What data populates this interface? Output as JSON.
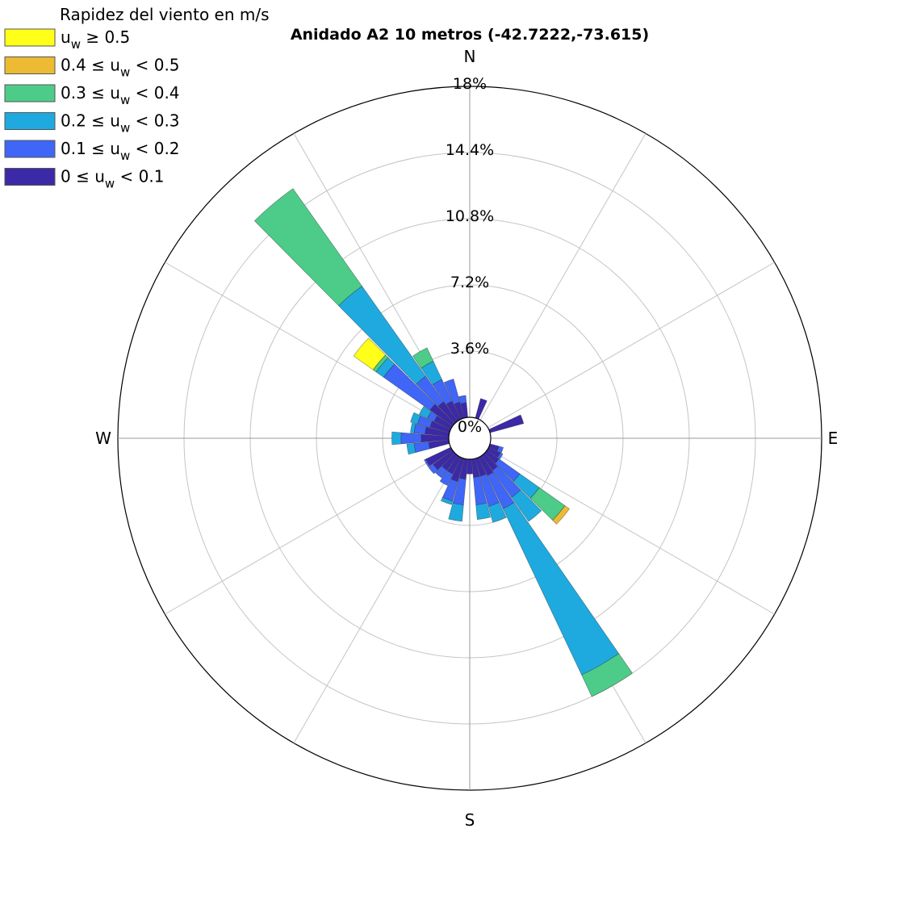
{
  "chart_data": {
    "type": "wind-rose",
    "title": "Anidado A2 10 metros  (-42.7222,-73.615)",
    "legend": {
      "title": "Rapidez del viento en m/s",
      "placement": "top-left",
      "entries": [
        {
          "label": "u_w ≥ 0.5",
          "base": "u",
          "sub": "w",
          "post": " ≥ 0.5",
          "color": "#ffff19"
        },
        {
          "label": "0.4 ≤ u_w < 0.5",
          "pre": "0.4 ≤ ",
          "base": "u",
          "sub": "w",
          "post": " < 0.5",
          "color": "#ecba33"
        },
        {
          "label": "0.3 ≤ u_w < 0.4",
          "pre": "0.3 ≤ ",
          "base": "u",
          "sub": "w",
          "post": " < 0.4",
          "color": "#4ccc88"
        },
        {
          "label": "0.2 ≤ u_w < 0.3",
          "pre": "0.2 ≤ ",
          "base": "u",
          "sub": "w",
          "post": " < 0.3",
          "color": "#1eaadf"
        },
        {
          "label": "0.1 ≤ u_w < 0.2",
          "pre": "0.1 ≤ ",
          "base": "u",
          "sub": "w",
          "post": " < 0.2",
          "color": "#3f66f7"
        },
        {
          "label": "0 ≤ u_w < 0.1",
          "pre": "0 ≤ ",
          "base": "u",
          "sub": "w",
          "post": " < 0.1",
          "color": "#3b29a8"
        }
      ]
    },
    "directions": {
      "N": "N",
      "E": "E",
      "S": "S",
      "W": "W"
    },
    "radial_ticks": [
      "0%",
      "3.6%",
      "7.2%",
      "10.8%",
      "14.4%",
      "18%"
    ],
    "radial_max_percent": 18,
    "grid": true,
    "sector_width_deg": 10,
    "series_order": [
      "0-0.1",
      "0.1-0.2",
      "0.2-0.3",
      "0.3-0.4",
      "0.4-0.5",
      ">=0.5"
    ],
    "sectors": [
      {
        "direction_deg": 20,
        "cumulative_percent": [
          1.1
        ]
      },
      {
        "direction_deg": 70,
        "cumulative_percent": [
          1.9
        ]
      },
      {
        "direction_deg": 110,
        "cumulative_percent": [
          0.5,
          0.75
        ]
      },
      {
        "direction_deg": 120,
        "cumulative_percent": [
          0.7,
          0.85
        ]
      },
      {
        "direction_deg": 130,
        "cumulative_percent": [
          0.8,
          2.2,
          3.5,
          5.2,
          5.5
        ]
      },
      {
        "direction_deg": 140,
        "cumulative_percent": [
          1.0,
          2.8,
          4.4
        ]
      },
      {
        "direction_deg": 150,
        "cumulative_percent": [
          1.1,
          3.1,
          13.1,
          14.4
        ]
      },
      {
        "direction_deg": 160,
        "cumulative_percent": [
          1.0,
          2.7,
          3.6
        ]
      },
      {
        "direction_deg": 170,
        "cumulative_percent": [
          1.0,
          2.5,
          3.3
        ]
      },
      {
        "direction_deg": 180,
        "cumulative_percent": [
          0.8
        ]
      },
      {
        "direction_deg": 190,
        "cumulative_percent": [
          1.1,
          2.5,
          3.4
        ]
      },
      {
        "direction_deg": 200,
        "cumulative_percent": [
          1.3,
          2.4,
          2.6
        ]
      },
      {
        "direction_deg": 210,
        "cumulative_percent": [
          1.0,
          1.7
        ]
      },
      {
        "direction_deg": 220,
        "cumulative_percent": [
          1.0,
          1.5
        ]
      },
      {
        "direction_deg": 230,
        "cumulative_percent": [
          1.3,
          1.6
        ]
      },
      {
        "direction_deg": 240,
        "cumulative_percent": [
          1.5,
          1.6
        ]
      },
      {
        "direction_deg": 260,
        "cumulative_percent": [
          1.1,
          1.9,
          2.3
        ]
      },
      {
        "direction_deg": 270,
        "cumulative_percent": [
          1.5,
          2.6,
          3.1
        ]
      },
      {
        "direction_deg": 280,
        "cumulative_percent": [
          1.3,
          1.9,
          2.1
        ]
      },
      {
        "direction_deg": 290,
        "cumulative_percent": [
          1.1,
          1.8,
          2.2
        ]
      },
      {
        "direction_deg": 300,
        "cumulative_percent": [
          1.0,
          1.4,
          1.9
        ]
      },
      {
        "direction_deg": 310,
        "cumulative_percent": [
          1.5,
          4.6,
          5.1,
          5.3,
          5.3,
          6.6
        ]
      },
      {
        "direction_deg": 320,
        "cumulative_percent": [
          1.3,
          3.0,
          9.0,
          15.5
        ]
      },
      {
        "direction_deg": 330,
        "cumulative_percent": [
          1.1,
          2.4,
          3.5,
          4.3
        ]
      },
      {
        "direction_deg": 340,
        "cumulative_percent": [
          0.9,
          2.2
        ]
      },
      {
        "direction_deg": 350,
        "cumulative_percent": [
          0.8,
          1.2
        ]
      }
    ]
  }
}
